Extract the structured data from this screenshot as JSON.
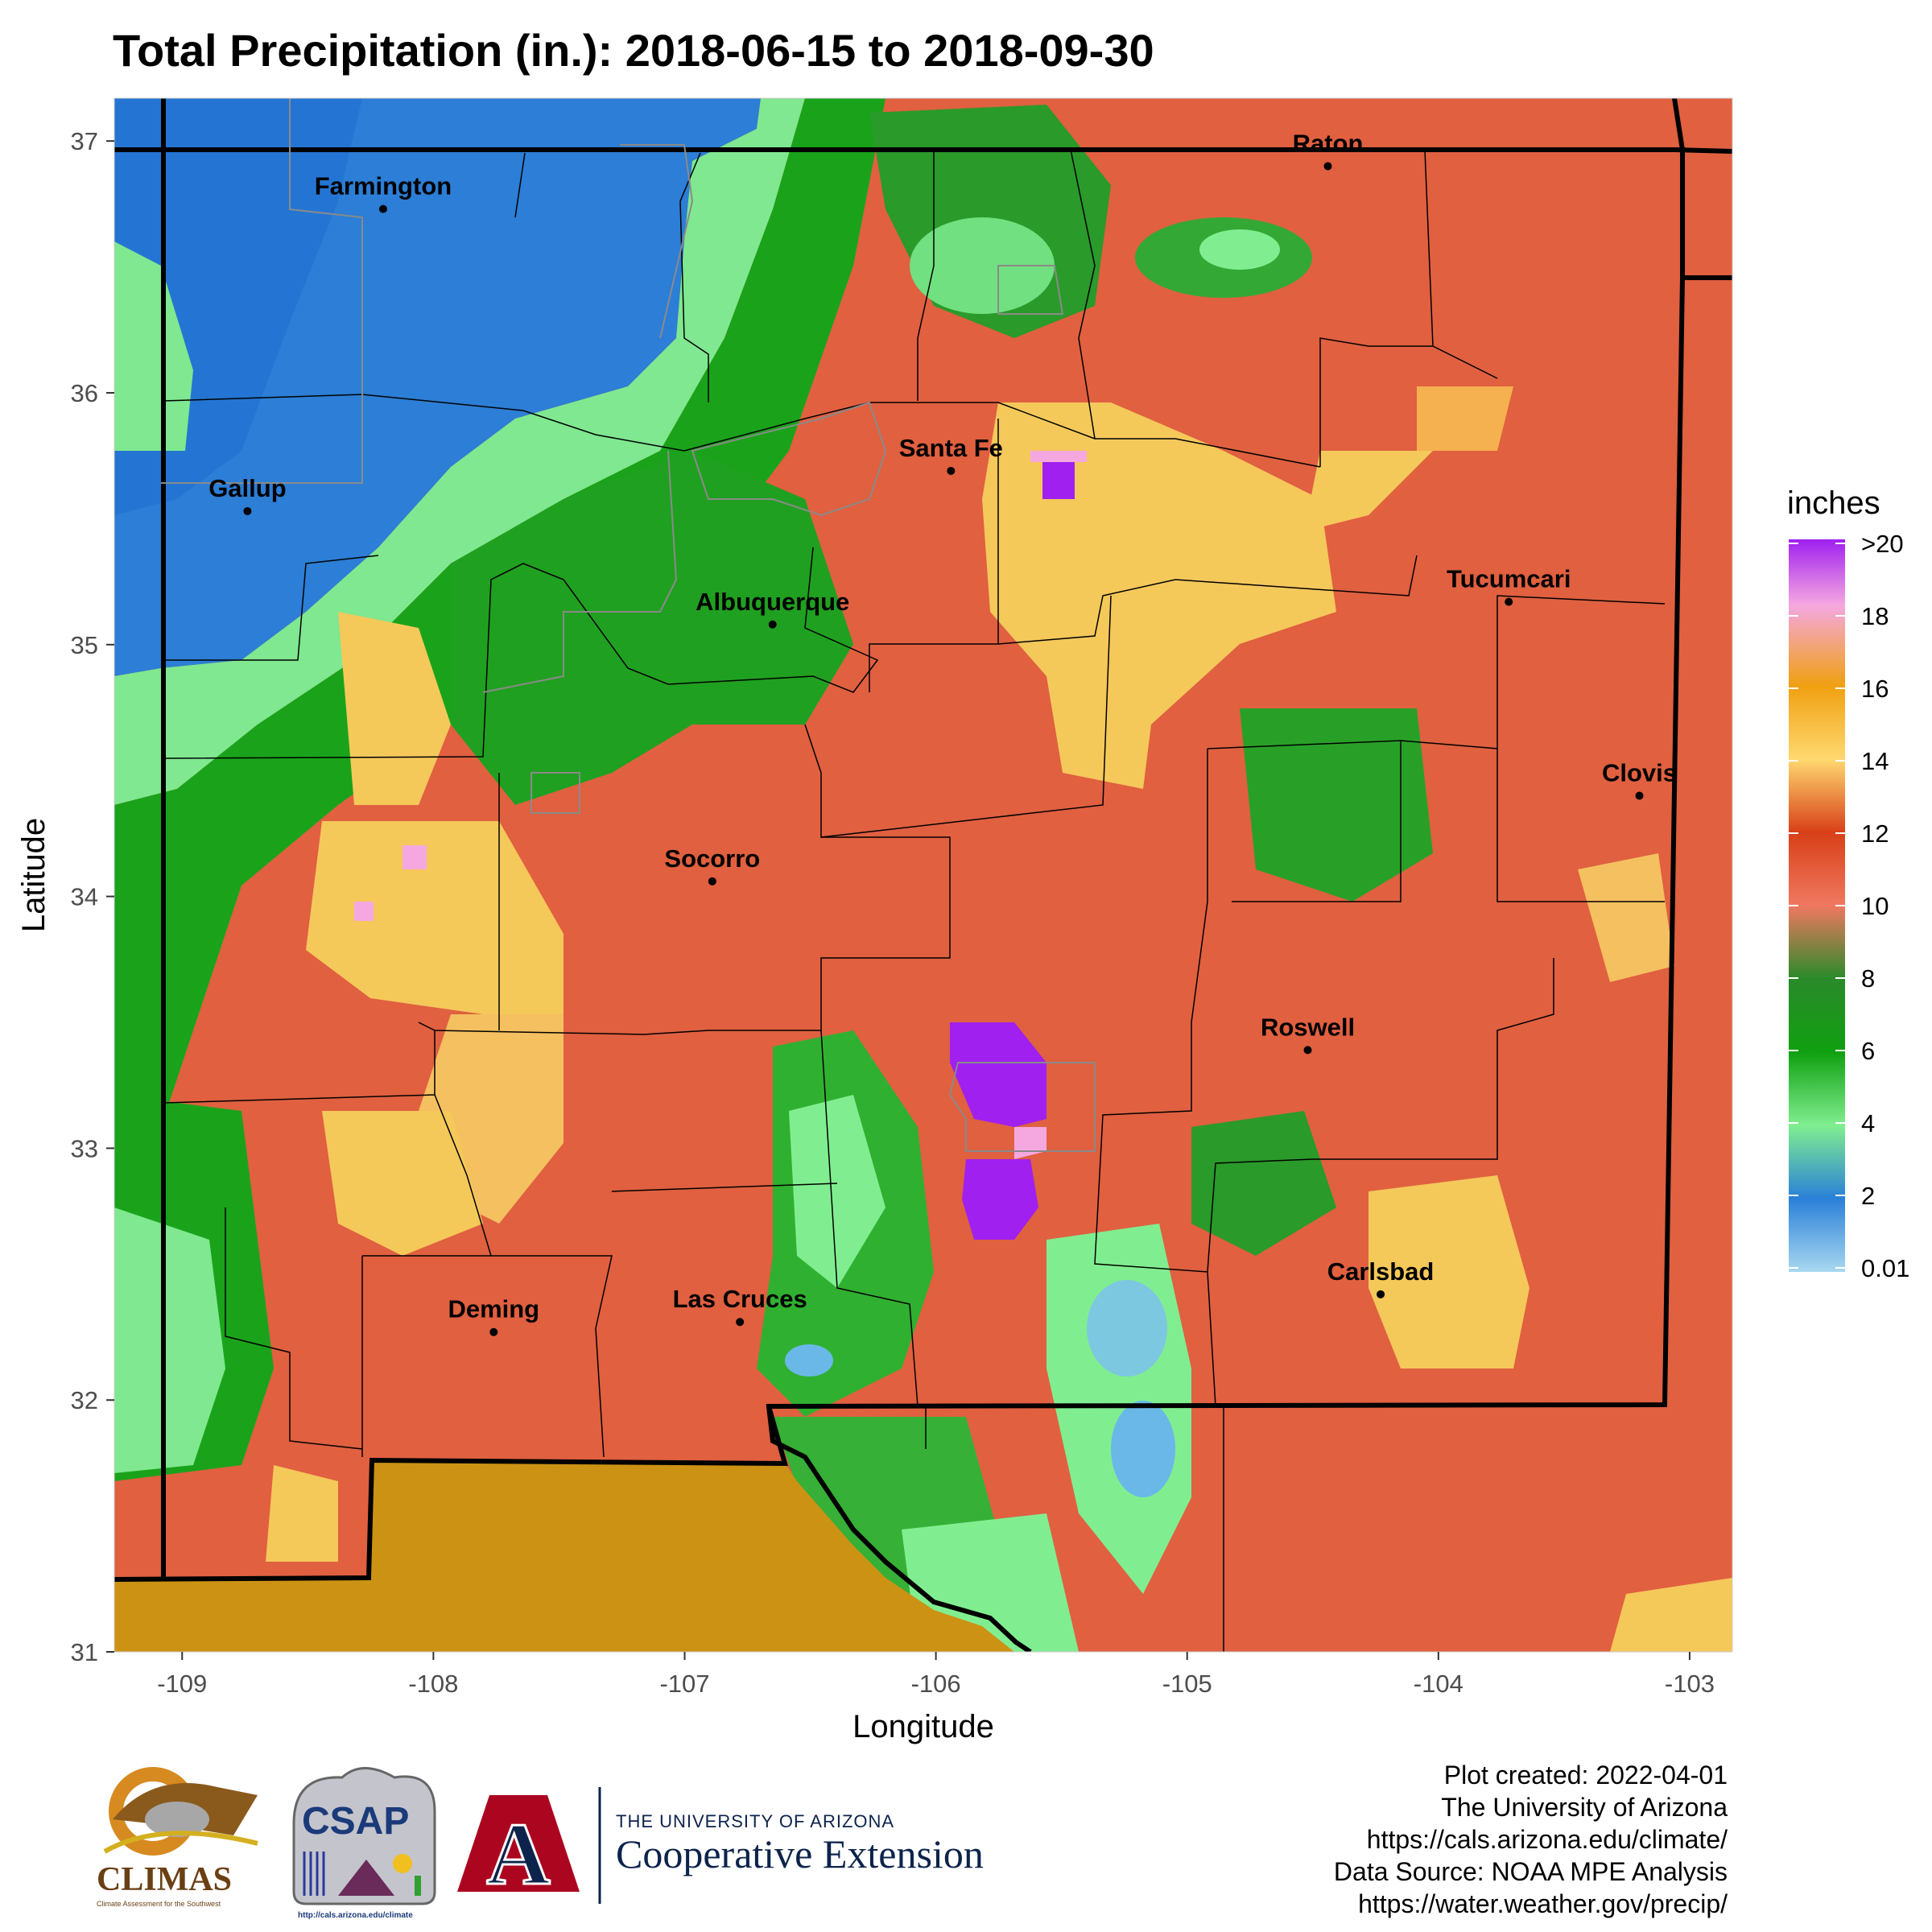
{
  "title": "Total Precipitation (in.): 2018-06-15 to 2018-09-30",
  "axes": {
    "xlabel": "Longitude",
    "ylabel": "Latitude",
    "x_ticks": [
      "-109",
      "-108",
      "-107",
      "-106",
      "-105",
      "-104",
      "-103"
    ],
    "y_ticks": [
      "37",
      "36",
      "35",
      "34",
      "33",
      "32",
      "31"
    ]
  },
  "legend": {
    "title": "inches",
    "labels": [
      ">20",
      "18",
      "16",
      "14",
      "12",
      "10",
      "8",
      "6",
      "4",
      "2",
      "0.01"
    ],
    "colors": [
      "#a020f0",
      "#f5a8e0",
      "#f0a010",
      "#ffd870",
      "#d84018",
      "#f07860",
      "#2a8a2a",
      "#10a010",
      "#80ee90",
      "#2a80d8",
      "#a8d8f0"
    ]
  },
  "cities": [
    {
      "name": "Farmington",
      "lon": -108.2,
      "lat": 36.73
    },
    {
      "name": "Raton",
      "lon": -104.44,
      "lat": 36.9
    },
    {
      "name": "Gallup",
      "lon": -108.74,
      "lat": 35.53
    },
    {
      "name": "Santa Fe",
      "lon": -105.94,
      "lat": 35.69
    },
    {
      "name": "Albuquerque",
      "lon": -106.65,
      "lat": 35.08
    },
    {
      "name": "Tucumcari",
      "lon": -103.72,
      "lat": 35.17
    },
    {
      "name": "Clovis",
      "lon": -103.2,
      "lat": 34.4
    },
    {
      "name": "Socorro",
      "lon": -106.89,
      "lat": 34.06
    },
    {
      "name": "Roswell",
      "lon": -104.52,
      "lat": 33.39
    },
    {
      "name": "Carlsbad",
      "lon": -104.23,
      "lat": 32.42
    },
    {
      "name": "Deming",
      "lon": -107.76,
      "lat": 32.27
    },
    {
      "name": "Las Cruces",
      "lon": -106.78,
      "lat": 32.31
    }
  ],
  "credits": [
    "Plot created: 2022-04-01",
    "The University of Arizona",
    "https://cals.arizona.edu/climate/",
    "Data Source: NOAA MPE Analysis",
    "https://water.weather.gov/precip/"
  ],
  "logos": {
    "climas": "CLIMAS",
    "climas_sub": "Climate Assessment for the Southwest",
    "csap": "CSAP",
    "csap_url": "http://cals.arizona.edu/climate",
    "ua_letter": "A",
    "ua_line1": "THE UNIVERSITY OF ARIZONA",
    "ua_line2": "Cooperative Extension"
  }
}
